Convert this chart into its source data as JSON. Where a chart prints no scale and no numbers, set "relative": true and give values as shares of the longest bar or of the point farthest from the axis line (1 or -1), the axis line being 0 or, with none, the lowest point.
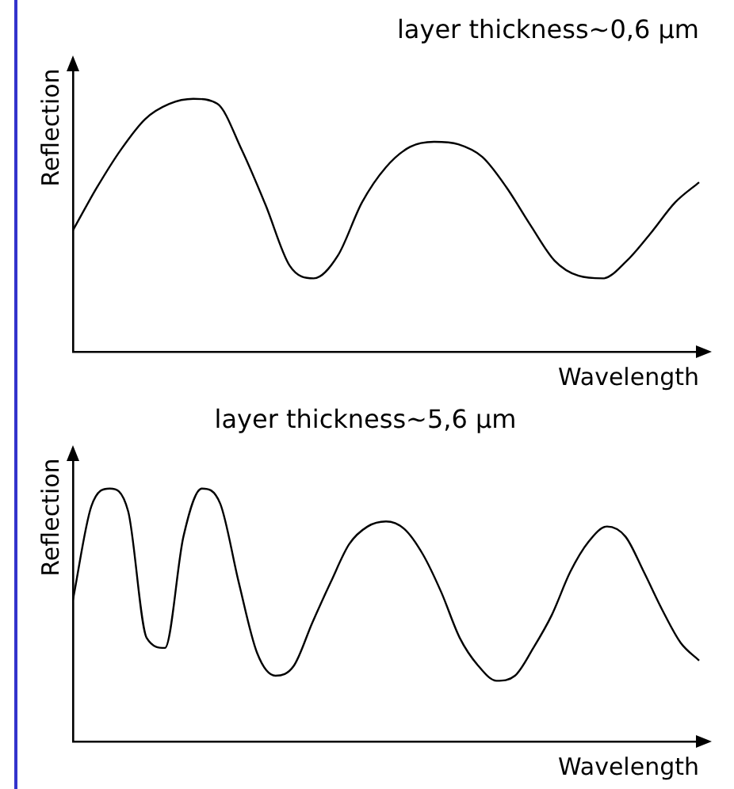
{
  "chart_data": [
    {
      "type": "line",
      "title": "layer thickness~0,6 µm",
      "xlabel": "Wavelength",
      "ylabel": "Reflection",
      "relative": true,
      "legend": false,
      "grid": false,
      "marker": "none",
      "line_style": "solid",
      "categories": [
        null,
        null,
        null,
        null,
        null,
        null,
        null,
        null,
        null,
        null,
        null,
        null,
        null,
        null,
        null,
        null,
        null,
        null,
        null,
        null,
        null,
        null,
        null,
        null,
        null,
        null,
        null
      ],
      "series": [
        {
          "color": "#000000",
          "values": [
            0.48,
            0.65,
            0.8,
            0.92,
            0.98,
            1,
            0.98,
            0.8,
            0.58,
            0.34,
            0.29,
            0.38,
            0.59,
            0.73,
            0.81,
            0.83,
            0.82,
            0.77,
            0.65,
            0.5,
            0.36,
            0.3,
            0.29,
            0.36,
            0.47,
            0.59,
            0.67
          ]
        }
      ]
    },
    {
      "type": "line",
      "title": "layer thickness~5,6 µm",
      "xlabel": "Wavelength",
      "ylabel": "Reflection",
      "relative": true,
      "legend": false,
      "grid": false,
      "marker": "none",
      "line_style": "solid",
      "categories": [
        null,
        null,
        null,
        null,
        null,
        null,
        null,
        null,
        null,
        null,
        null,
        null,
        null,
        null,
        null,
        null,
        null,
        null,
        null,
        null,
        null,
        null,
        null,
        null,
        null,
        null,
        null,
        null,
        null,
        null,
        null,
        null,
        null,
        null,
        null
      ],
      "series": [
        {
          "color": "#000000",
          "values": [
            0.56,
            0.93,
            1,
            0.91,
            0.41,
            0.37,
            0.81,
            1,
            0.94,
            0.63,
            0.35,
            0.26,
            0.3,
            0.47,
            0.63,
            0.78,
            0.85,
            0.87,
            0.84,
            0.74,
            0.59,
            0.41,
            0.3,
            0.24,
            0.26,
            0.37,
            0.5,
            0.67,
            0.79,
            0.85,
            0.81,
            0.67,
            0.52,
            0.39,
            0.32
          ]
        }
      ]
    }
  ]
}
